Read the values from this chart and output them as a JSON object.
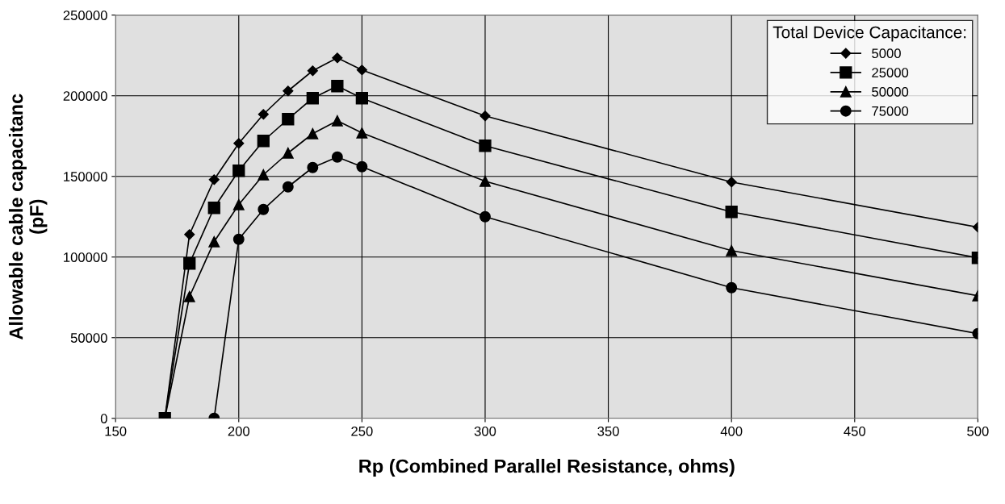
{
  "chart_data": {
    "type": "line",
    "xlabel": "Rp (Combined Parallel Resistance, ohms)",
    "ylabel": "Allowable cable capacitanc\n(pF)",
    "legend_title": "Total Device Capacitance:",
    "x": [
      170,
      180,
      190,
      200,
      210,
      220,
      230,
      240,
      250,
      300,
      400,
      500
    ],
    "series": [
      {
        "name": "5000",
        "color": "#000000",
        "marker": "diamond",
        "values": [
          0,
          114000,
          148000,
          170500,
          188500,
          203000,
          215500,
          223500,
          216000,
          187500,
          146500,
          118500
        ]
      },
      {
        "name": "25000",
        "color": "#000000",
        "marker": "square",
        "values": [
          0,
          96000,
          130500,
          153500,
          172000,
          185500,
          198500,
          206000,
          198500,
          169000,
          128000,
          99500
        ]
      },
      {
        "name": "50000",
        "color": "#000000",
        "marker": "triangle",
        "values": [
          0,
          75500,
          109500,
          132500,
          151000,
          164500,
          176500,
          184500,
          177000,
          147000,
          104000,
          76000
        ]
      },
      {
        "name": "75000",
        "color": "#000000",
        "marker": "circle",
        "x": [
          190,
          200,
          210,
          220,
          230,
          240,
          250,
          300,
          400,
          500
        ],
        "values": [
          0,
          111000,
          129500,
          143500,
          155500,
          162000,
          156000,
          125000,
          81000,
          52500
        ]
      }
    ],
    "xlim": [
      150,
      500
    ],
    "xticks": [
      150,
      200,
      250,
      300,
      350,
      400,
      450,
      500
    ],
    "ylim": [
      0,
      250000
    ],
    "yticks": [
      0,
      50000,
      100000,
      150000,
      200000,
      250000
    ],
    "grid": true,
    "legend": "top right",
    "line_style": "solid"
  }
}
